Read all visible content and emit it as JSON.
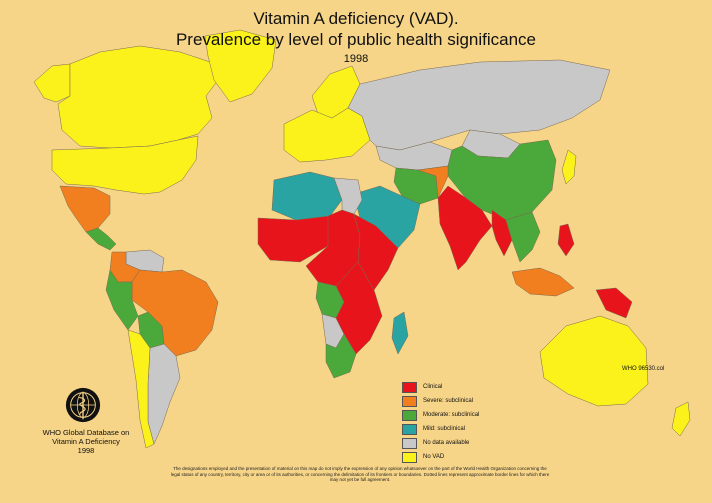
{
  "title": {
    "line1": "Vitamin A deficiency (VAD).",
    "line2": "Prevalence by level of public health significance",
    "year": "1998"
  },
  "colors": {
    "ocean": "#f6d488",
    "clinical": "#e8141c",
    "severe": "#f27f1f",
    "moderate": "#4aa93a",
    "mild": "#2aa3a3",
    "no_data": "#c8c8c8",
    "no_vad": "#fbf21c",
    "border": "#7a6a50"
  },
  "legend": {
    "items": [
      {
        "key": "clinical",
        "label": "Clinical"
      },
      {
        "key": "severe",
        "label": "Severe: subclinical"
      },
      {
        "key": "moderate",
        "label": "Moderate: subclinical"
      },
      {
        "key": "mild",
        "label": "Mild: subclinical"
      },
      {
        "key": "no_data",
        "label": "No data available"
      },
      {
        "key": "no_vad",
        "label": "No VAD"
      }
    ]
  },
  "code": "WHO 96530.col",
  "who": {
    "line1": "WHO Global Database on",
    "line2": "Vitamin A  Deficiency",
    "line3": "1998"
  },
  "disclaimer": "The designations employed and the presentation of material on this map do not imply the expression of any opinion whatsoever on the part of the World Health Organization concerning the legal status of any country, territory, city or area or of its authorities, or concerning the delimitation of its frontiers or boundaries. Dotted lines represent approximate border lines for which there may not yet be full agreement.",
  "regions": [
    {
      "name": "Canada",
      "cat": "no_vad"
    },
    {
      "name": "Alaska",
      "cat": "no_vad"
    },
    {
      "name": "Greenland",
      "cat": "no_vad"
    },
    {
      "name": "United States",
      "cat": "no_vad"
    },
    {
      "name": "Mexico",
      "cat": "severe"
    },
    {
      "name": "Central America",
      "cat": "moderate"
    },
    {
      "name": "Colombia",
      "cat": "severe"
    },
    {
      "name": "Venezuela",
      "cat": "no_data"
    },
    {
      "name": "Brazil",
      "cat": "severe"
    },
    {
      "name": "Peru",
      "cat": "moderate"
    },
    {
      "name": "Bolivia",
      "cat": "moderate"
    },
    {
      "name": "Argentina",
      "cat": "no_data"
    },
    {
      "name": "Chile",
      "cat": "no_vad"
    },
    {
      "name": "Europe",
      "cat": "no_vad"
    },
    {
      "name": "Scandinavia",
      "cat": "no_vad"
    },
    {
      "name": "Russia",
      "cat": "no_data"
    },
    {
      "name": "Mongolia",
      "cat": "no_data"
    },
    {
      "name": "China",
      "cat": "moderate"
    },
    {
      "name": "Kazakhstan",
      "cat": "no_data"
    },
    {
      "name": "Iran",
      "cat": "moderate"
    },
    {
      "name": "Afghanistan",
      "cat": "severe"
    },
    {
      "name": "Arabia",
      "cat": "mild"
    },
    {
      "name": "India",
      "cat": "clinical"
    },
    {
      "name": "Myanmar",
      "cat": "clinical"
    },
    {
      "name": "Southeast Asia",
      "cat": "moderate"
    },
    {
      "name": "Indonesia",
      "cat": "severe"
    },
    {
      "name": "Papua",
      "cat": "clinical"
    },
    {
      "name": "Philippines",
      "cat": "clinical"
    },
    {
      "name": "Japan",
      "cat": "no_vad"
    },
    {
      "name": "Australia",
      "cat": "no_vad"
    },
    {
      "name": "New Zealand",
      "cat": "no_vad"
    },
    {
      "name": "North Africa",
      "cat": "mild"
    },
    {
      "name": "Egypt",
      "cat": "no_data"
    },
    {
      "name": "West Africa",
      "cat": "clinical"
    },
    {
      "name": "Central Africa",
      "cat": "clinical"
    },
    {
      "name": "East Africa",
      "cat": "clinical"
    },
    {
      "name": "Southern Africa",
      "cat": "clinical"
    },
    {
      "name": "Angola",
      "cat": "moderate"
    },
    {
      "name": "Namibia",
      "cat": "no_data"
    },
    {
      "name": "South Africa",
      "cat": "moderate"
    },
    {
      "name": "Madagascar",
      "cat": "mild"
    }
  ]
}
